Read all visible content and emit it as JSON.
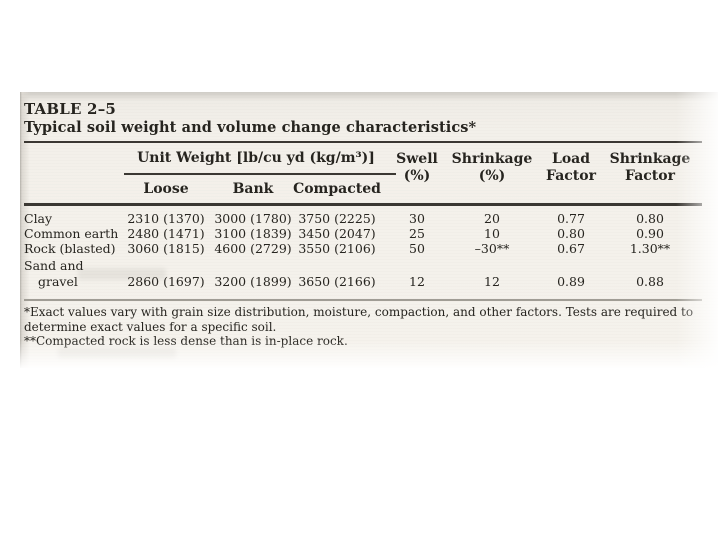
{
  "table": {
    "number": "TABLE 2–5",
    "title": "Typical soil weight and volume change characteristics*",
    "unit_weight_header": "Unit Weight [lb/cu yd (kg/m³)]",
    "sub_headers": [
      "Loose",
      "Bank",
      "Compacted"
    ],
    "col_headers": [
      {
        "line1": "Swell",
        "line2": "(%)"
      },
      {
        "line1": "Shrinkage",
        "line2": "(%)"
      },
      {
        "line1": "Load",
        "line2": "Factor"
      },
      {
        "line1": "Shrinkage",
        "line2": "Factor"
      }
    ],
    "rows": [
      {
        "label": "Clay",
        "loose": "2310 (1370)",
        "bank": "3000 (1780)",
        "compacted": "3750 (2225)",
        "swell": "30",
        "shrinkage": "20",
        "load_factor": "0.77",
        "shrinkage_factor": "0.80"
      },
      {
        "label": "Common earth",
        "loose": "2480 (1471)",
        "bank": "3100 (1839)",
        "compacted": "3450 (2047)",
        "swell": "25",
        "shrinkage": "10",
        "load_factor": "0.80",
        "shrinkage_factor": "0.90"
      },
      {
        "label": "Rock (blasted)",
        "loose": "3060 (1815)",
        "bank": "4600 (2729)",
        "compacted": "3550 (2106)",
        "swell": "50",
        "shrinkage": "–30**",
        "load_factor": "0.67",
        "shrinkage_factor": "1.30**"
      },
      {
        "label_line1": "Sand and",
        "label_line2": "gravel",
        "loose": "2860 (1697)",
        "bank": "3200 (1899)",
        "compacted": "3650 (2166)",
        "swell": "12",
        "shrinkage": "12",
        "load_factor": "0.89",
        "shrinkage_factor": "0.88"
      }
    ],
    "footnote_lines": [
      "*Exact values vary with grain size distribution, moisture, compaction, and other factors. Tests are required to",
      "determine exact values for a specific soil.",
      "**Compacted rock is less dense than is in-place rock."
    ]
  }
}
